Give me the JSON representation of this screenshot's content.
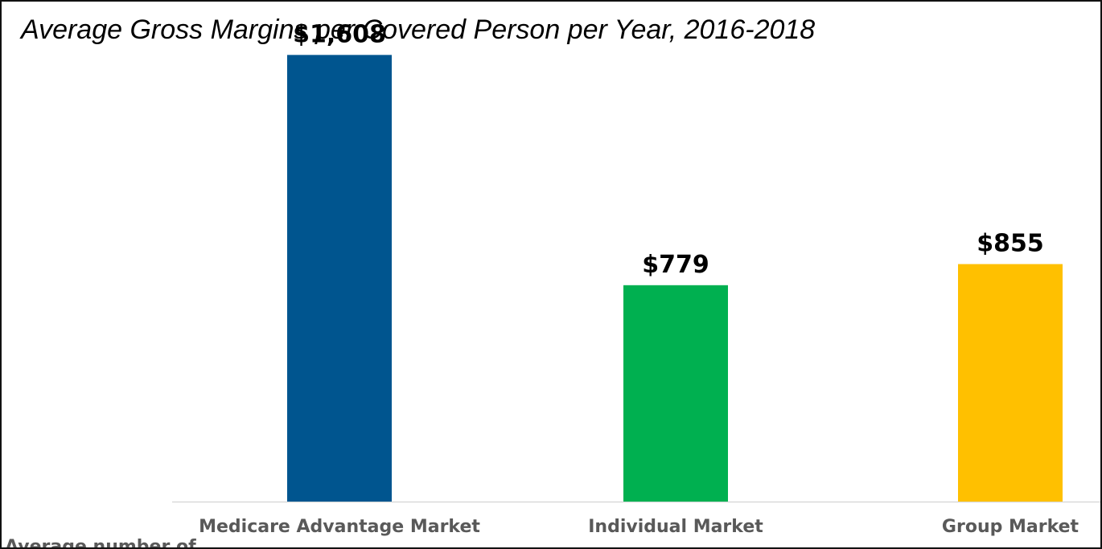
{
  "chart_data": {
    "type": "bar",
    "title": "Average Gross Margins per Covered Person per Year, 2016-2018",
    "categories": [
      "Medicare Advantage Market",
      "Individual Market",
      "Group Market"
    ],
    "values": [
      1608,
      779,
      855
    ],
    "data_labels": [
      "$1,608",
      "$779",
      "$855"
    ],
    "colors": [
      "#00558f",
      "#00b050",
      "#ffc000"
    ],
    "xlabel": "",
    "ylabel": "",
    "ylim": [
      0,
      1800
    ],
    "grid": false,
    "legend": "none"
  },
  "cut_off_text": "Average number of"
}
